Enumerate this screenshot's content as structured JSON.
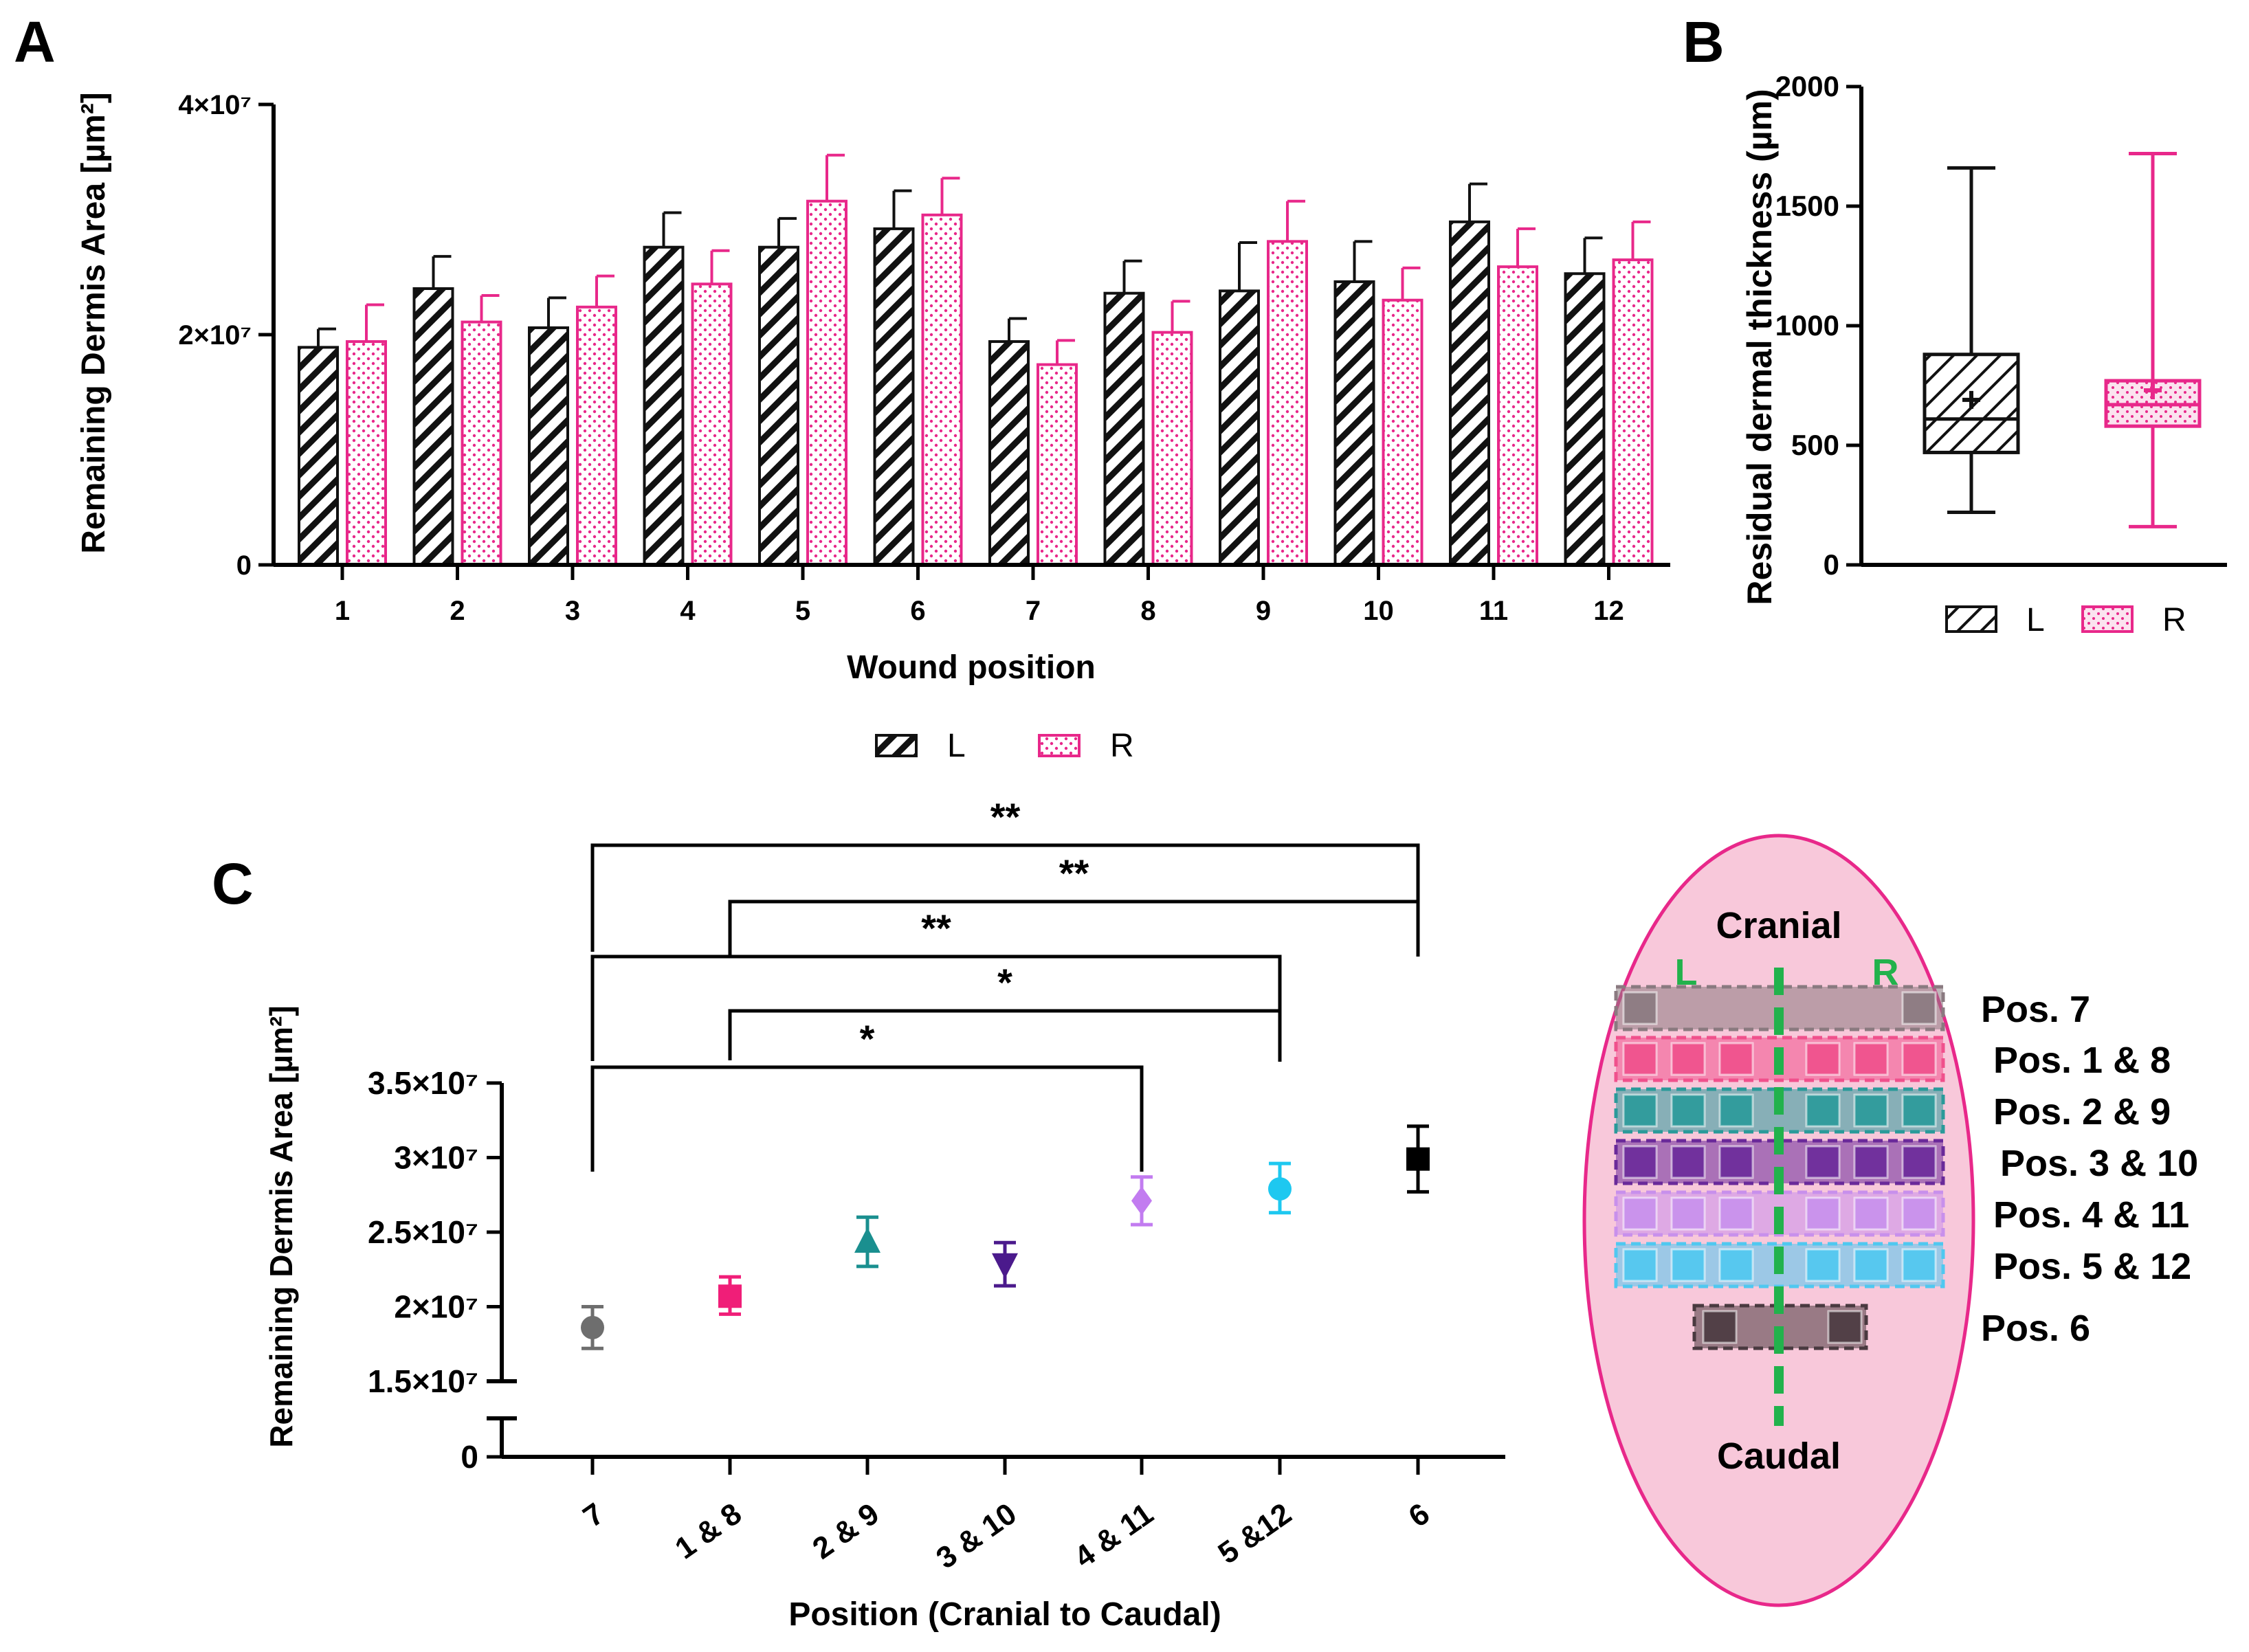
{
  "panels": {
    "a": "A",
    "b": "B",
    "c": "C"
  },
  "colors": {
    "left": "#111111",
    "right": "#e8288a",
    "diagram_bg": "#f8c8da",
    "diagram_border": "#e8288a",
    "midline": "#22b24c"
  },
  "chart_data": [
    {
      "id": "A",
      "type": "bar",
      "xlabel": "Wound position",
      "ylabel": "Remaining Dermis Area [µm²]",
      "categories": [
        "1",
        "2",
        "3",
        "4",
        "5",
        "6",
        "7",
        "8",
        "9",
        "10",
        "11",
        "12"
      ],
      "ylim": [
        0,
        40000000
      ],
      "yticks": [
        {
          "value": 0,
          "label": "0"
        },
        {
          "value": 20000000,
          "label": "2×10⁷"
        },
        {
          "value": 40000000,
          "label": "4×10⁷"
        }
      ],
      "series": [
        {
          "name": "L",
          "pattern": "hatched",
          "values": [
            18900000,
            24000000,
            20600000,
            27600000,
            27600000,
            29200000,
            19400000,
            23600000,
            23800000,
            24600000,
            29800000,
            25300000
          ],
          "errors": [
            1600000,
            2800000,
            2600000,
            3000000,
            2500000,
            3300000,
            2000000,
            2800000,
            4200000,
            3500000,
            3300000,
            3100000
          ]
        },
        {
          "name": "R",
          "pattern": "dotted",
          "values": [
            19400000,
            21100000,
            22400000,
            24400000,
            31600000,
            30400000,
            17400000,
            20200000,
            28100000,
            23000000,
            25900000,
            26500000
          ],
          "errors": [
            3200000,
            2300000,
            2700000,
            2900000,
            4000000,
            3200000,
            2100000,
            2700000,
            3500000,
            2800000,
            3300000,
            3300000
          ]
        }
      ],
      "legend": [
        "L",
        "R"
      ]
    },
    {
      "id": "B",
      "type": "box",
      "ylabel": "Residual dermal thickness (µm)",
      "ylim": [
        0,
        2000
      ],
      "yticks": [
        0,
        500,
        1000,
        1500,
        2000
      ],
      "boxes": [
        {
          "name": "L",
          "min": 220,
          "q1": 470,
          "median": 610,
          "q3": 880,
          "max": 1660,
          "mean": 690
        },
        {
          "name": "R",
          "min": 160,
          "q1": 580,
          "median": 670,
          "q3": 770,
          "max": 1720,
          "mean": 730
        }
      ],
      "legend": [
        "L",
        "R"
      ]
    },
    {
      "id": "C",
      "type": "scatter",
      "xlabel": "Position (Cranial to Caudal)",
      "ylabel": "Remaining Dermis Area [µm²]",
      "categories": [
        "7",
        "1 & 8",
        "2 & 9",
        "3 & 10",
        "4 & 11",
        "5 &12",
        "6"
      ],
      "ylim": [
        0,
        35000000
      ],
      "axis_break": [
        3000000,
        15000000
      ],
      "yticks": [
        {
          "value": 0,
          "label": "0"
        },
        {
          "value": 15000000,
          "label": "1.5×10⁷"
        },
        {
          "value": 20000000,
          "label": "2×10⁷"
        },
        {
          "value": 25000000,
          "label": "2.5×10⁷"
        },
        {
          "value": 30000000,
          "label": "3×10⁷"
        },
        {
          "value": 35000000,
          "label": "3.5×10⁷"
        }
      ],
      "points": [
        {
          "category": "7",
          "value": 18600000,
          "lo": 17200000,
          "hi": 20000000,
          "color": "#6e6e6e",
          "marker": "circle"
        },
        {
          "category": "1 & 8",
          "value": 20700000,
          "lo": 19500000,
          "hi": 22000000,
          "color": "#f01e78",
          "marker": "square"
        },
        {
          "category": "2 & 9",
          "value": 24400000,
          "lo": 22700000,
          "hi": 26000000,
          "color": "#1a8f8f",
          "marker": "triangle-up"
        },
        {
          "category": "3 & 10",
          "value": 22800000,
          "lo": 21400000,
          "hi": 24300000,
          "color": "#4b1a8c",
          "marker": "triangle-down"
        },
        {
          "category": "4 & 11",
          "value": 27100000,
          "lo": 25500000,
          "hi": 28700000,
          "color": "#c27cf0",
          "marker": "diamond"
        },
        {
          "category": "5 &12",
          "value": 27900000,
          "lo": 26300000,
          "hi": 29600000,
          "color": "#1ec8f0",
          "marker": "circle"
        },
        {
          "category": "6",
          "value": 29900000,
          "lo": 27700000,
          "hi": 32100000,
          "color": "#000000",
          "marker": "square"
        }
      ],
      "significance": [
        {
          "from": "7",
          "to": "6",
          "label": "**"
        },
        {
          "from": "1 & 8",
          "to": "6",
          "label": "**"
        },
        {
          "from": "7",
          "to": "5 &12",
          "label": "**"
        },
        {
          "from": "1 & 8",
          "to": "5 &12",
          "label": "*"
        },
        {
          "from": "7",
          "to": "4 & 11",
          "label": "*"
        }
      ]
    }
  ],
  "diagram": {
    "top": "Cranial",
    "bottom": "Caudal",
    "left": "L",
    "right": "R",
    "rows": [
      {
        "label": "Pos. 7",
        "color": "#8a7a80"
      },
      {
        "label": "Pos. 1 & 8",
        "color": "#f0508c"
      },
      {
        "label": "Pos. 2 & 9",
        "color": "#2a9a9a"
      },
      {
        "label": "Pos. 3 & 10",
        "color": "#6a2a9a"
      },
      {
        "label": "Pos. 4 & 11",
        "color": "#c890ec"
      },
      {
        "label": "Pos. 5 & 12",
        "color": "#50c8f0"
      },
      {
        "label": "Pos. 6",
        "color": "#4a3a40"
      }
    ]
  }
}
